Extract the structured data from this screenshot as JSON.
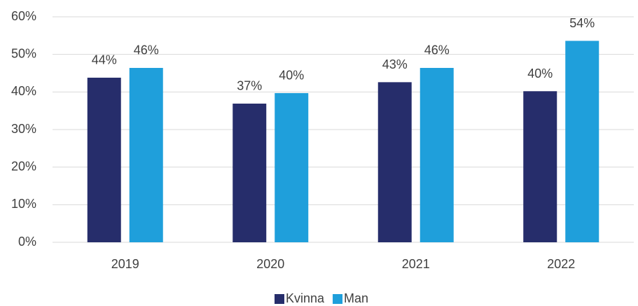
{
  "chart_data": {
    "type": "bar",
    "categories": [
      "2019",
      "2020",
      "2021",
      "2022"
    ],
    "series": [
      {
        "name": "Kvinna",
        "color": "#262d6b",
        "values": [
          43.8,
          36.9,
          42.6,
          40.2
        ],
        "value_labels": [
          "44%",
          "37%",
          "43%",
          "40%"
        ]
      },
      {
        "name": "Man",
        "color": "#1f9fdb",
        "values": [
          46.4,
          39.7,
          46.4,
          53.6
        ],
        "value_labels": [
          "46%",
          "40%",
          "46%",
          "54%"
        ]
      }
    ],
    "ylim": [
      0,
      60
    ],
    "yticks": [
      {
        "value": 0,
        "label": "0%"
      },
      {
        "value": 10,
        "label": "10%"
      },
      {
        "value": 20,
        "label": "20%"
      },
      {
        "value": 30,
        "label": "30%"
      },
      {
        "value": 40,
        "label": "40%"
      },
      {
        "value": 50,
        "label": "50%"
      },
      {
        "value": 60,
        "label": "60%"
      }
    ],
    "grid": true,
    "legend": "bottom"
  }
}
